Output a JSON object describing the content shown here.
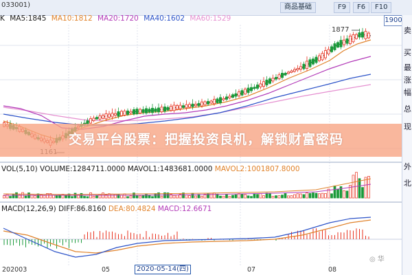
{
  "header": {
    "stock_code": "033001)",
    "top_buttons": [
      "商品基础",
      "F9",
      "F6",
      "F10"
    ],
    "price_box": "1900"
  },
  "ma_indicator": {
    "prefix": "K",
    "items": [
      {
        "label": "MA5:1845",
        "color": "#1a1a1a"
      },
      {
        "label": "MA10:1812",
        "color": "#e0822a"
      },
      {
        "label": "MA20:1720",
        "color": "#b23ab8"
      },
      {
        "label": "MA40:1602",
        "color": "#2b52c8"
      },
      {
        "label": "MA60:1529",
        "color": "#e58fd0"
      }
    ]
  },
  "chart_annotations": {
    "high_label": "1877",
    "low_label": "1161"
  },
  "banner": {
    "text": "交易平台股票：把握投资良机，解锁财富密码"
  },
  "volume": {
    "title": "VOL(5,10)",
    "vol": "VOLUME:1284711.0000",
    "mavol1": "MAVOL1:1483681.0000",
    "mavol2": "MAVOL2:1001807.8000"
  },
  "macd": {
    "title": "MACD(12,26,9)",
    "diff": "DIFF:86.8160",
    "dea": "DEA:80.4824",
    "macd": "MACD:12.6671"
  },
  "right_panel": [
    "卖",
    "买",
    "最",
    "涨",
    "幅",
    "总",
    "现",
    "外",
    "北"
  ],
  "date_axis": {
    "ticks": [
      "202003",
      "05",
      "07",
      "08"
    ],
    "selected": "2020-05-14(四)"
  },
  "watermark": "◎ 华",
  "colors": {
    "up": "#e8301e",
    "down": "#1a9a3a",
    "ma5": "#1a1a1a",
    "ma10": "#e0822a",
    "ma20": "#b23ab8",
    "ma40": "#2b52c8",
    "ma60": "#e58fd0",
    "banner": "#f7a382"
  }
}
